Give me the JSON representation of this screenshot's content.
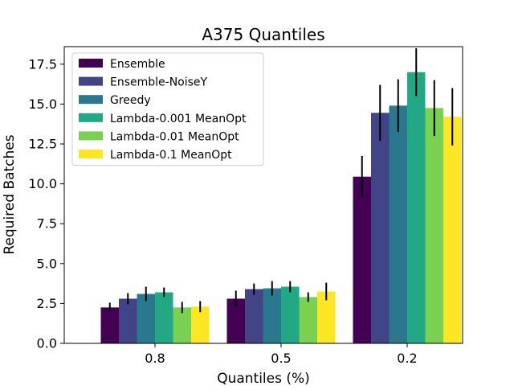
{
  "chart_data": {
    "type": "bar",
    "title": "A375 Quantiles",
    "xlabel": "Quantiles (%)",
    "ylabel": "Required Batches",
    "categories": [
      "0.8",
      "0.5",
      "0.2"
    ],
    "ylim": [
      0,
      18.6
    ],
    "yticks": [
      0.0,
      2.5,
      5.0,
      7.5,
      10.0,
      12.5,
      15.0,
      17.5
    ],
    "ytick_labels": [
      "0.0",
      "2.5",
      "5.0",
      "7.5",
      "10.0",
      "12.5",
      "15.0",
      "17.5"
    ],
    "grid": false,
    "legend_position": "top-left",
    "series": [
      {
        "name": "Ensemble",
        "color": "#440154",
        "values": [
          2.25,
          2.8,
          10.45
        ],
        "errors": [
          0.3,
          0.5,
          1.3
        ]
      },
      {
        "name": "Ensemble-NoiseY",
        "color": "#414487",
        "values": [
          2.8,
          3.4,
          14.45
        ],
        "errors": [
          0.35,
          0.35,
          1.75
        ]
      },
      {
        "name": "Greedy",
        "color": "#2a788e",
        "values": [
          3.1,
          3.45,
          14.9
        ],
        "errors": [
          0.45,
          0.45,
          1.65
        ]
      },
      {
        "name": "Lambda-0.001 MeanOpt",
        "color": "#22a884",
        "values": [
          3.2,
          3.55,
          17.0
        ],
        "errors": [
          0.3,
          0.35,
          1.5
        ]
      },
      {
        "name": "Lambda-0.01 MeanOpt",
        "color": "#7ad151",
        "values": [
          2.25,
          2.9,
          14.75
        ],
        "errors": [
          0.35,
          0.3,
          1.75
        ]
      },
      {
        "name": "Lambda-0.1 MeanOpt",
        "color": "#fde725",
        "values": [
          2.3,
          3.25,
          14.2
        ],
        "errors": [
          0.35,
          0.55,
          1.8
        ]
      }
    ]
  }
}
